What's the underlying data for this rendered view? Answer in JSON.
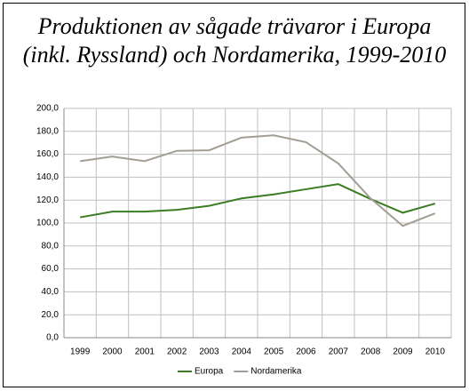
{
  "chart_data": {
    "type": "line",
    "title": "Produktionen av sågade trävaror i Europa (inkl. Ryssland) och Nordamerika, 1999-2010",
    "categories": [
      "1999",
      "2000",
      "2001",
      "2002",
      "2003",
      "2004",
      "2005",
      "2006",
      "2007",
      "2008",
      "2009",
      "2010"
    ],
    "series": [
      {
        "name": "Europa",
        "color": "#3a7d22",
        "values": [
          105,
          110,
          110,
          111.5,
          115,
          121.5,
          125,
          129.5,
          134,
          121,
          109,
          117
        ]
      },
      {
        "name": "Nordamerika",
        "color": "#a39e93",
        "values": [
          154,
          158,
          154,
          163,
          163.5,
          174.5,
          176.5,
          170.5,
          152,
          121.5,
          97.5,
          108.5
        ]
      }
    ],
    "ylim": [
      0,
      200
    ],
    "yticks": [
      {
        "value": 0,
        "label": "0,0"
      },
      {
        "value": 20,
        "label": "20,0"
      },
      {
        "value": 40,
        "label": "40,0"
      },
      {
        "value": 60,
        "label": "60,0"
      },
      {
        "value": 80,
        "label": "80,0"
      },
      {
        "value": 100,
        "label": "100,0"
      },
      {
        "value": 120,
        "label": "120,0"
      },
      {
        "value": 140,
        "label": "140,0"
      },
      {
        "value": 160,
        "label": "160,0"
      },
      {
        "value": 180,
        "label": "180,0"
      },
      {
        "value": 200,
        "label": "200,0"
      }
    ],
    "grid": true,
    "legend": "bottom"
  }
}
